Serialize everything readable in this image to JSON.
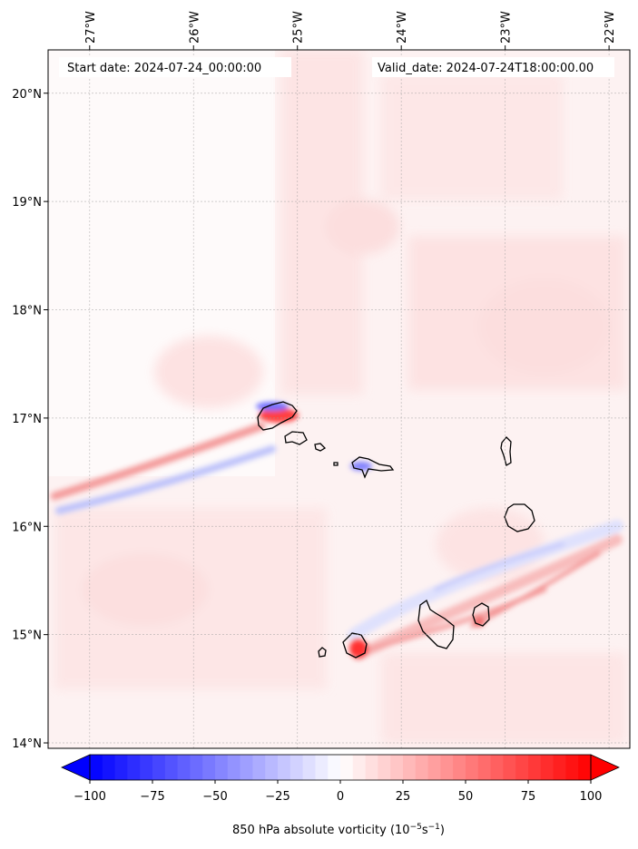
{
  "header": {
    "start_label": "Start date: 2024-07-24_00:00:00",
    "valid_label": "Valid_date: 2024-07-24T18:00:00.00"
  },
  "map": {
    "lon_labels": [
      "27°W",
      "26°W",
      "25°W",
      "24°W",
      "23°W",
      "22°W"
    ],
    "lat_labels": [
      "20°N",
      "19°N",
      "18°N",
      "17°N",
      "16°N",
      "15°N",
      "14°N"
    ],
    "lon_range": [
      -27.4,
      -21.8
    ],
    "lat_range": [
      13.95,
      20.4
    ],
    "islands": [
      "Santo Antão",
      "São Vicente",
      "Santa Luzia",
      "Branco",
      "São Nicolau",
      "Sal",
      "Boa Vista",
      "Brava",
      "Fogo",
      "Santiago",
      "Maio"
    ]
  },
  "colorbar": {
    "label_text": "850 hPa absolute vorticity (10",
    "label_exp1": "−5",
    "label_mid": "s",
    "label_exp2": "−1",
    "label_end": ")",
    "ticks": [
      "−100",
      "−75",
      "−50",
      "−25",
      "0",
      "25",
      "50",
      "75",
      "100"
    ],
    "tick_values": [
      -100,
      -75,
      -50,
      -25,
      0,
      25,
      50,
      75,
      100
    ],
    "min": -100,
    "max": 100,
    "step": 5,
    "neg_color": "#0000ff",
    "zero_color": "#ffffff",
    "pos_color": "#ff0000"
  }
}
